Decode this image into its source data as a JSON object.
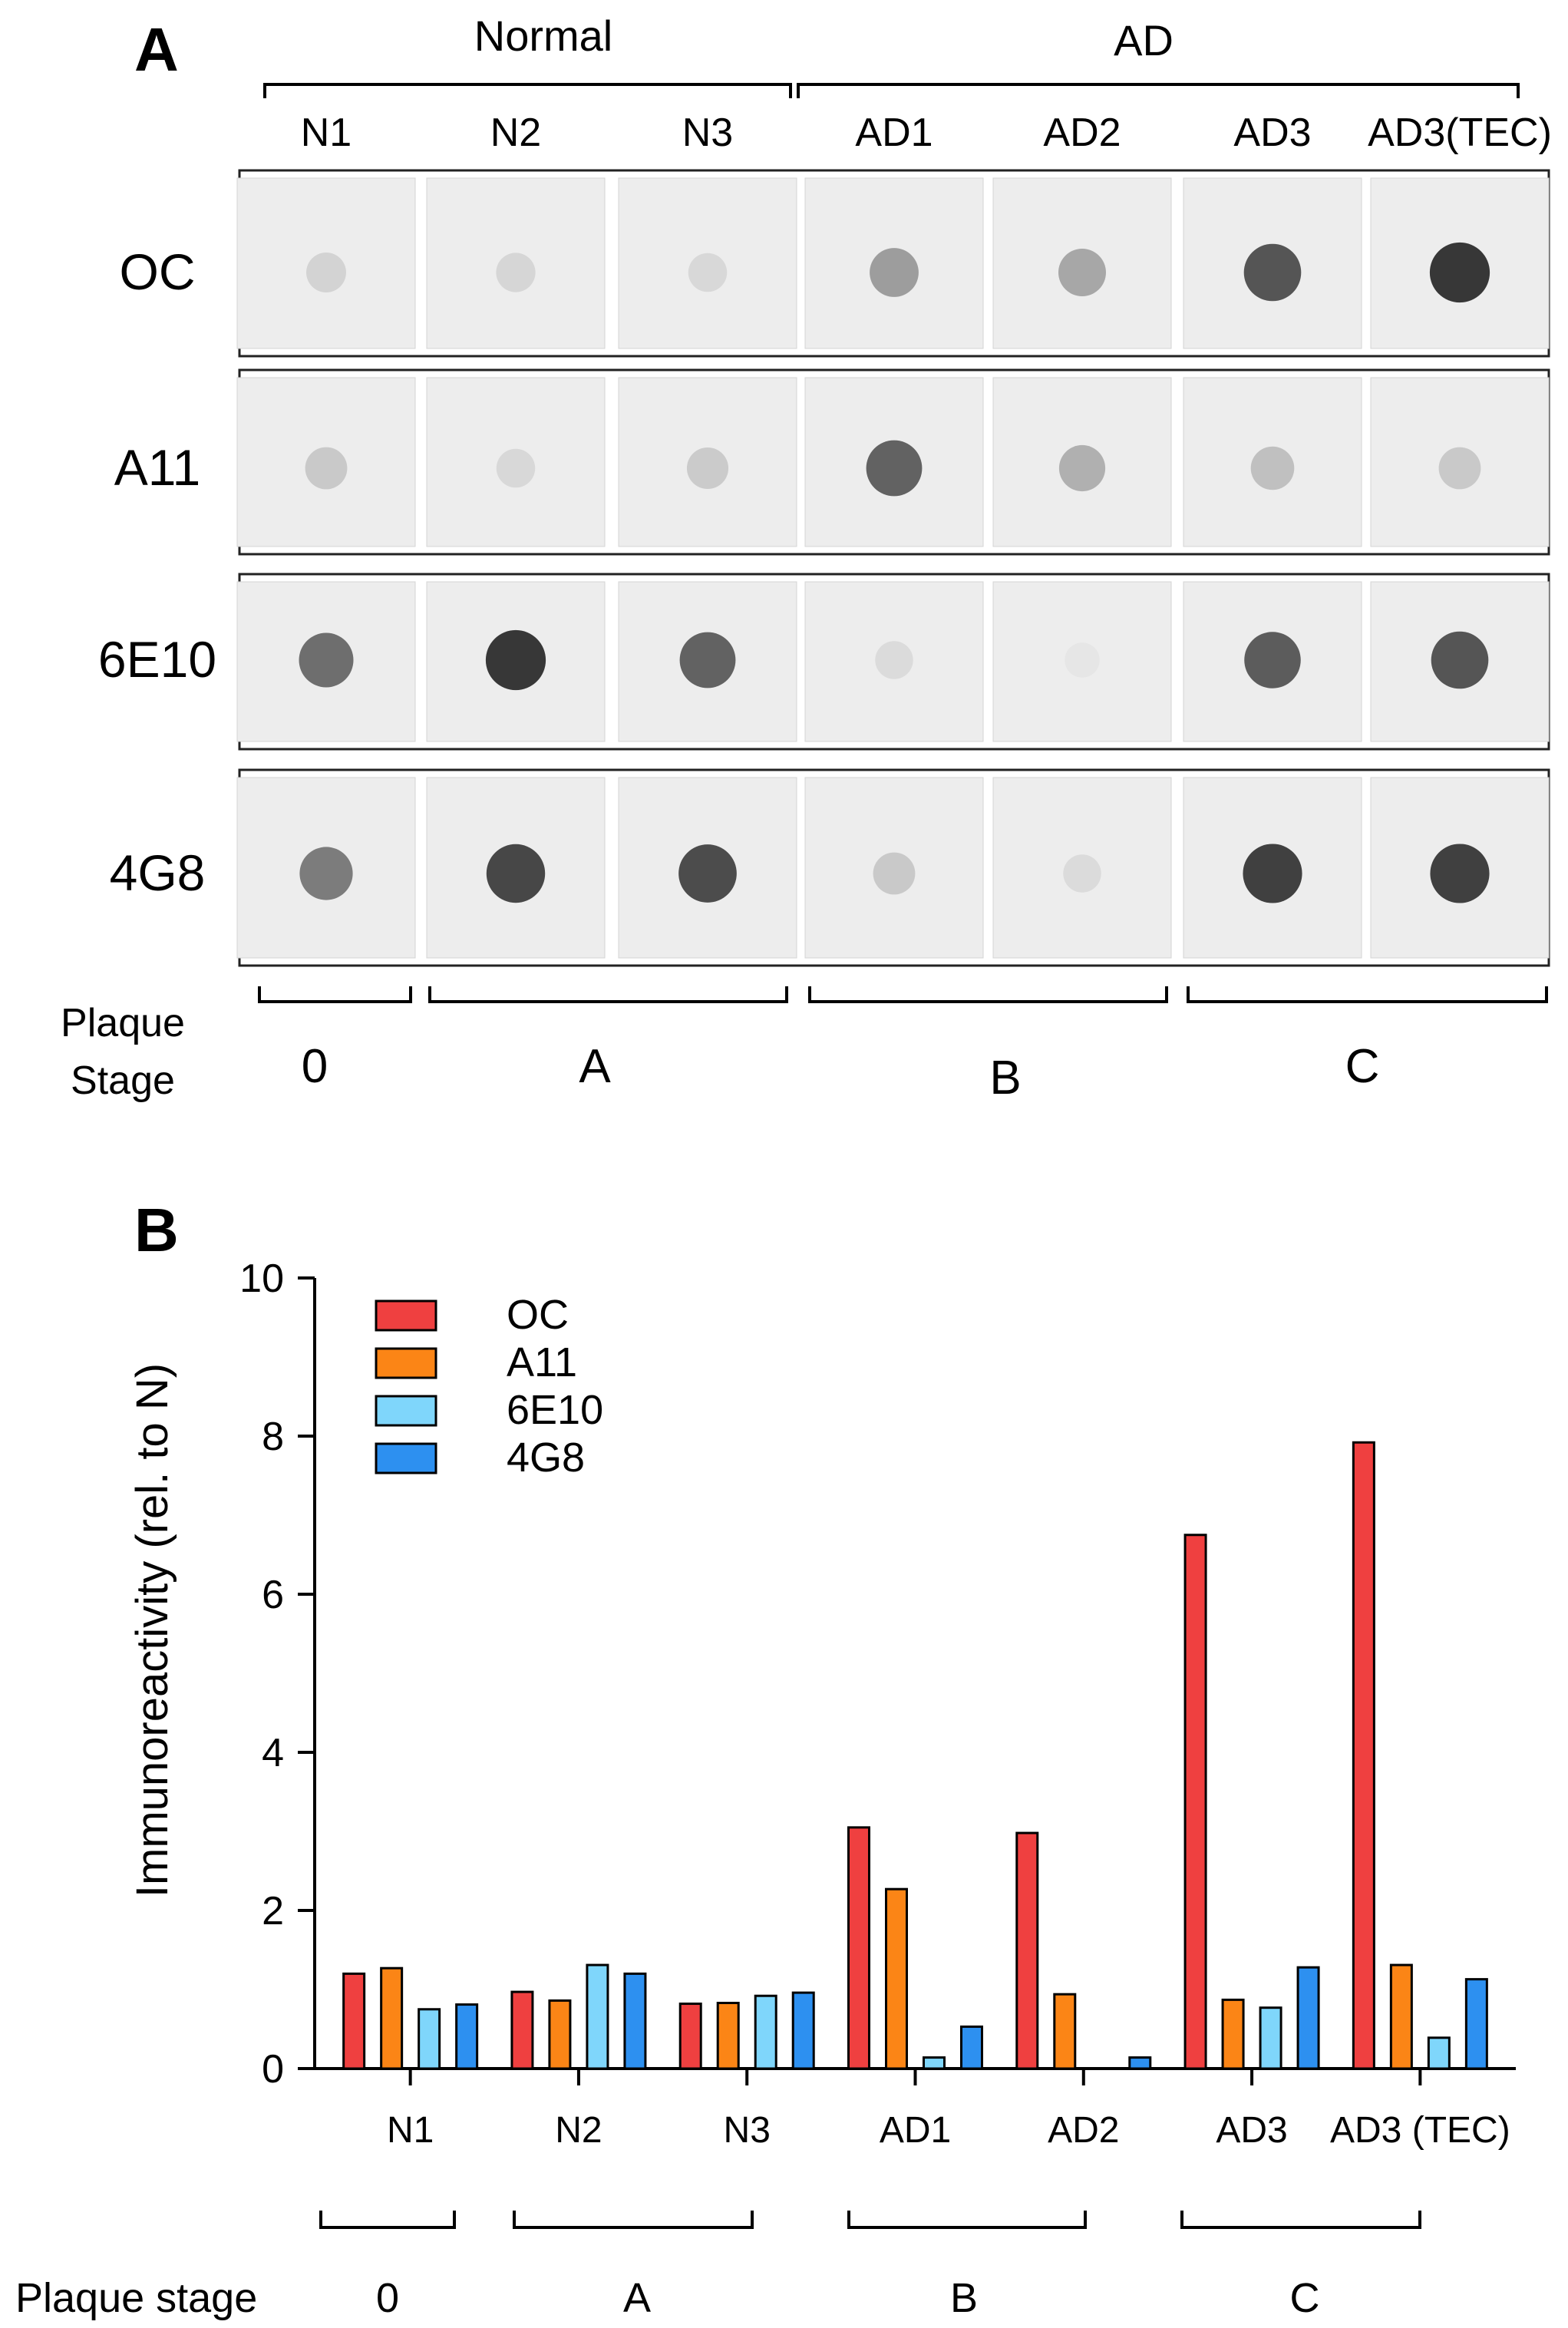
{
  "panel_a": {
    "label": "A",
    "group_labels": [
      "Normal",
      "AD"
    ],
    "samples": [
      "N1",
      "N2",
      "N3",
      "AD1",
      "AD2",
      "AD3",
      "AD3(TEC)"
    ],
    "antibodies": [
      "OC",
      "A11",
      "6E10",
      "4G8"
    ],
    "plaque_label_line1": "Plaque",
    "plaque_label_line2": "Stage",
    "stages": [
      "0",
      "A",
      "B",
      "C"
    ]
  },
  "panel_b": {
    "label": "B",
    "plaque_label": "Plaque stage",
    "stages": [
      "0",
      "A",
      "B",
      "C"
    ]
  },
  "chart_data": {
    "type": "bar",
    "title": "",
    "xlabel": "",
    "ylabel": "Immunoreactivity (rel. to N)",
    "ylim": [
      0,
      10
    ],
    "yticks": [
      "0",
      "2",
      "4",
      "6",
      "8",
      "10"
    ],
    "categories": [
      "N1",
      "N2",
      "N3",
      "AD1",
      "AD2",
      "AD3",
      "AD3 (TEC)"
    ],
    "series": [
      {
        "name": "OC",
        "color": "#ef4040",
        "values": [
          1.2,
          0.97,
          0.82,
          3.05,
          2.98,
          6.75,
          7.92
        ]
      },
      {
        "name": "A11",
        "color": "#fb8516",
        "values": [
          1.27,
          0.86,
          0.83,
          2.27,
          0.94,
          0.87,
          1.31
        ]
      },
      {
        "name": "6E10",
        "color": "#7fd6fb",
        "values": [
          0.75,
          1.31,
          0.92,
          0.14,
          0.0,
          0.77,
          0.39
        ]
      },
      {
        "name": "4G8",
        "color": "#2d90f0",
        "values": [
          0.81,
          1.2,
          0.96,
          0.53,
          0.14,
          1.28,
          1.13
        ]
      }
    ],
    "legend_position": "top-left"
  },
  "blot_intensity": {
    "note_unit": "darkness 0-1",
    "rows": [
      [
        0.22,
        0.2,
        0.18,
        0.55,
        0.5,
        0.85,
        0.95
      ],
      [
        0.3,
        0.18,
        0.28,
        0.8,
        0.45,
        0.35,
        0.3
      ],
      [
        0.75,
        0.95,
        0.8,
        0.15,
        0.04,
        0.82,
        0.85
      ],
      [
        0.7,
        0.9,
        0.88,
        0.3,
        0.15,
        0.92,
        0.92
      ]
    ]
  },
  "colors": {
    "axis": "#000000",
    "blot_background": "#ededed",
    "frame": "#222222"
  }
}
